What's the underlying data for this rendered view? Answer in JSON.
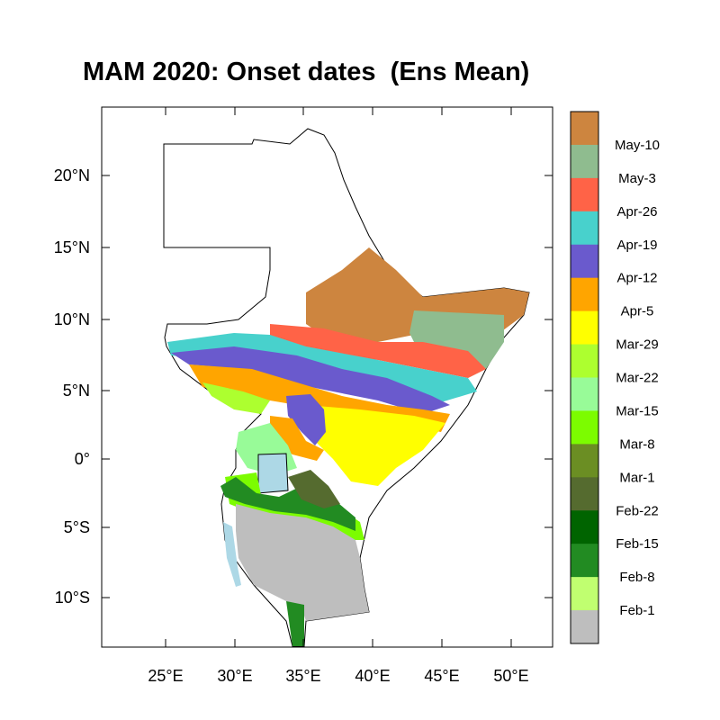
{
  "title": "MAM 2020: Onset dates  (Ens Mean)",
  "map": {
    "lat_ticks": [
      "20°N",
      "15°N",
      "10°N",
      "5°N",
      "0°",
      "5°S",
      "10°S"
    ],
    "lon_ticks": [
      "25°E",
      "30°E",
      "35°E",
      "40°E",
      "45°E",
      "50°E"
    ],
    "lon_range": [
      20.7,
      52.5
    ],
    "lat_range": [
      -13.2,
      24.5
    ]
  },
  "colorbar": {
    "labels": [
      "May-10",
      "May-3",
      "Apr-26",
      "Apr-19",
      "Apr-12",
      "Apr-5",
      "Mar-29",
      "Mar-22",
      "Mar-15",
      "Mar-8",
      "Mar-1",
      "Feb-22",
      "Feb-15",
      "Feb-8",
      "Feb-1"
    ],
    "colors": [
      "#cd853f",
      "#8fbc8f",
      "#ff6347",
      "#48d1cc",
      "#6a5acd",
      "#ffa500",
      "#ffff00",
      "#adff2f",
      "#98fb98",
      "#7cfc00",
      "#6b8e23",
      "#556b2f",
      "#006400",
      "#228b22",
      "#c0ff70",
      "#bebebe"
    ]
  }
}
